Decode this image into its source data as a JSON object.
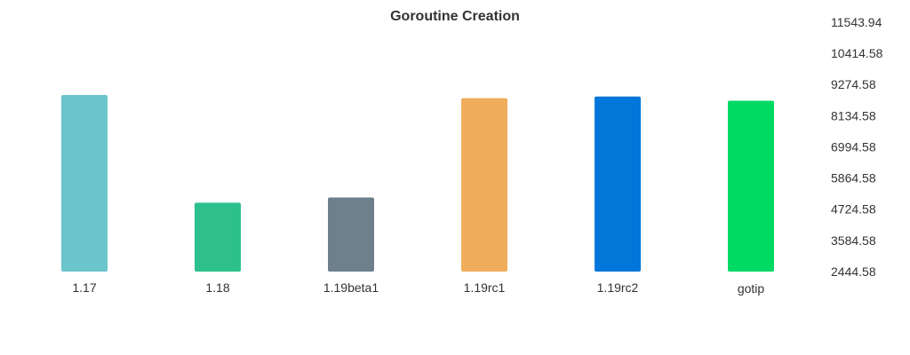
{
  "chart_data": {
    "type": "bar",
    "title": "Goroutine Creation",
    "xlabel": "",
    "ylabel": "",
    "categories": [
      "1.17",
      "1.18",
      "1.19beta1",
      "1.19rc1",
      "1.19rc2",
      "gotip"
    ],
    "values": [
      8890,
      4960,
      5150,
      8770,
      8830,
      8680
    ],
    "colors": [
      "#6cc4cc",
      "#2dc08c",
      "#6d808c",
      "#f0ad5b",
      "#0077d9",
      "#00d963"
    ],
    "ylim": [
      2444.58,
      11543.94
    ],
    "y_tick_labels": [
      "11543.94",
      "10414.58",
      "9274.58",
      "8134.58",
      "6994.58",
      "5864.58",
      "4724.58",
      "3584.58",
      "2444.58"
    ],
    "y_axis_position": "right",
    "grid": false,
    "legend": "none"
  }
}
